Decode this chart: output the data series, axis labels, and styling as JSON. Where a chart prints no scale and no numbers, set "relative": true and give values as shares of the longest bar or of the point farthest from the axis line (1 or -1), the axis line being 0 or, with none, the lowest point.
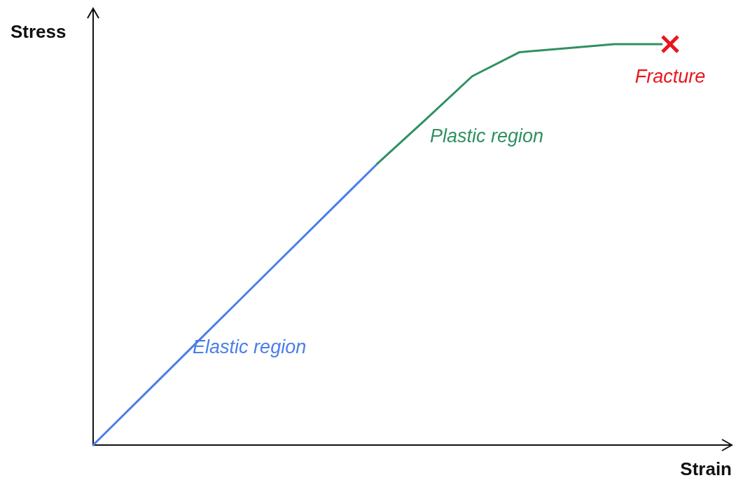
{
  "chart_data": {
    "type": "line",
    "relative": true,
    "xlabel": "Strain",
    "ylabel": "Stress",
    "categories": [
      null,
      null,
      null,
      null,
      null,
      null,
      null,
      null,
      null,
      null,
      null,
      null,
      null
    ],
    "annotations": [
      "Fracture"
    ],
    "series": [
      {
        "name": "Elastic region",
        "color": "#4a7eea",
        "values": [
          0,
          0.117,
          0.234,
          0.351,
          0.468,
          0.585,
          0.702,
          null,
          null,
          null,
          null,
          null,
          null
        ]
      },
      {
        "name": "Plastic region",
        "color": "#2f9160",
        "values": [
          null,
          null,
          null,
          null,
          null,
          null,
          0.702,
          0.81,
          0.92,
          0.98,
          0.99,
          1,
          1
        ]
      }
    ]
  }
}
